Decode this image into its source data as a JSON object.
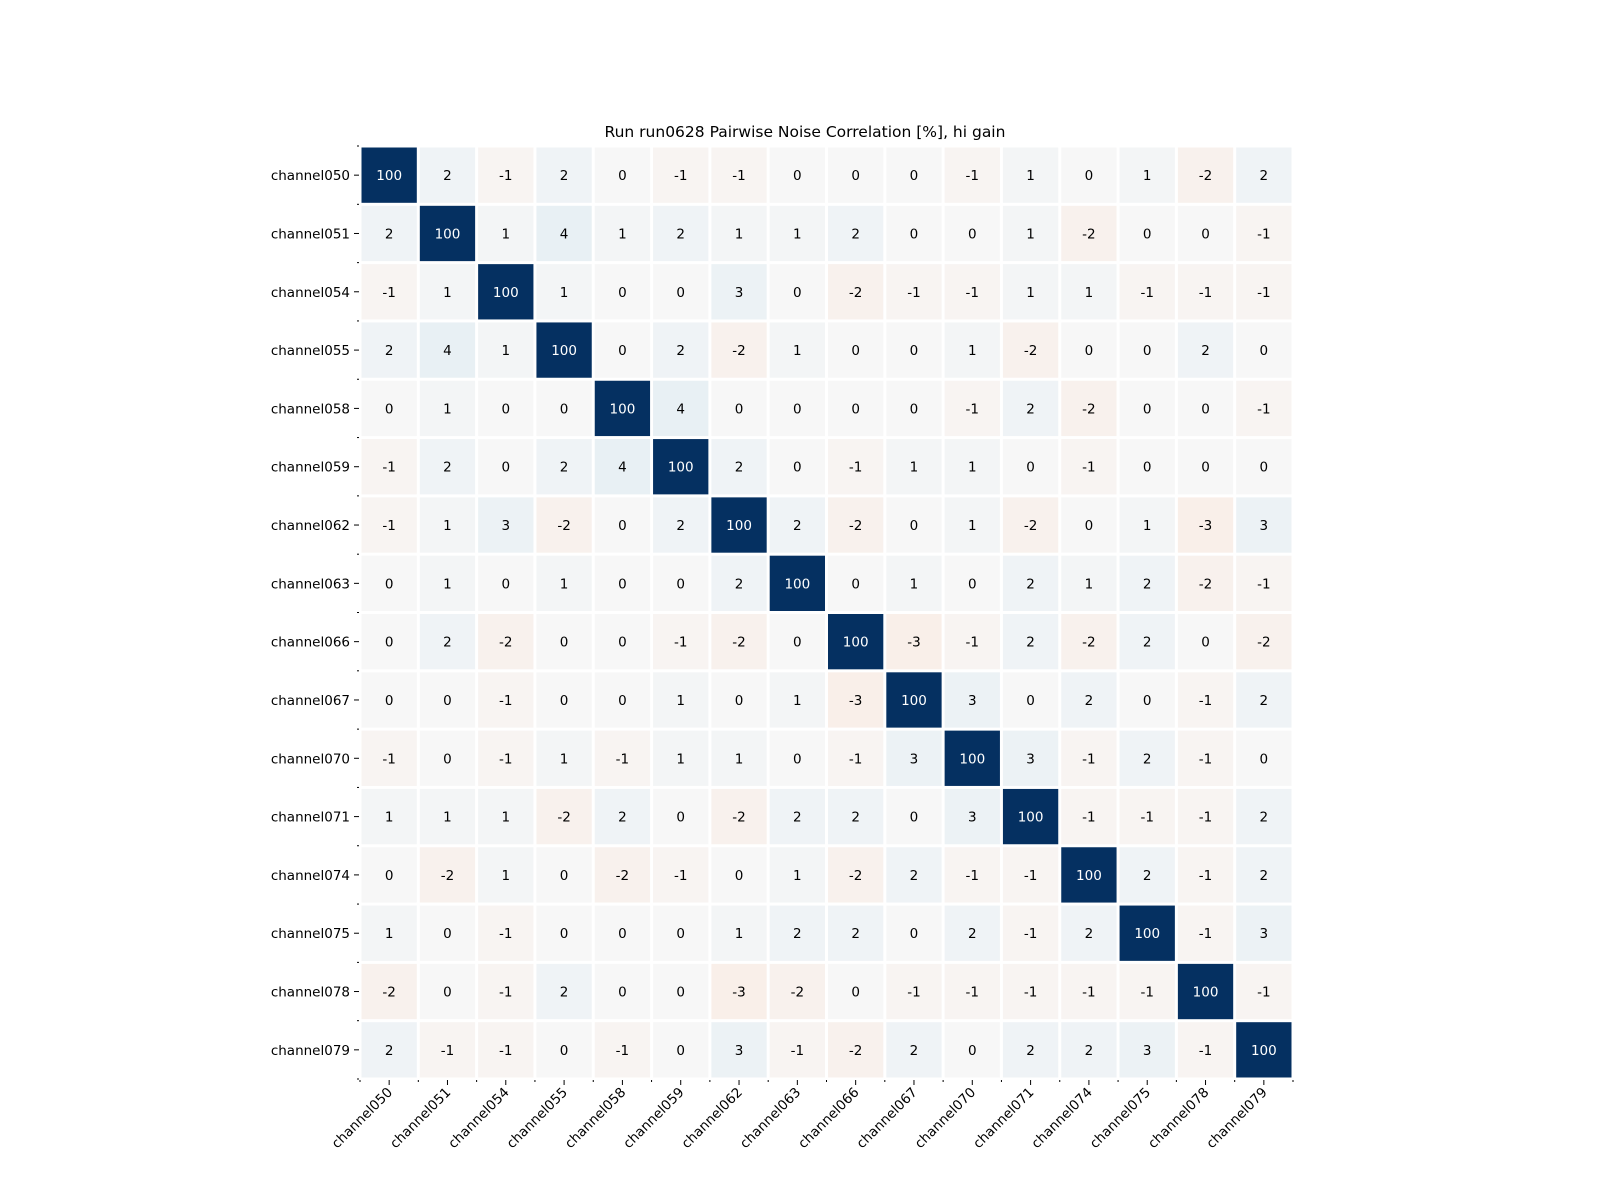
{
  "chart_data": {
    "type": "heatmap",
    "title": "Run run0628 Pairwise Noise Correlation [%], hi gain",
    "xlabel": "",
    "ylabel": "",
    "colormap": "diverging red-white-blue (RdBu), centered at 0",
    "vmin": -100,
    "vmax": 100,
    "colors": {
      "negative_extreme": "#67001f",
      "neutral": "#f7f7f7",
      "positive_extreme": "#053061",
      "diagonal": "#053061",
      "gridline": "#ffffff"
    },
    "grid": false,
    "legend": "none",
    "x_categories": [
      "channel050",
      "channel051",
      "channel054",
      "channel055",
      "channel058",
      "channel059",
      "channel062",
      "channel063",
      "channel066",
      "channel067",
      "channel070",
      "channel071",
      "channel074",
      "channel075",
      "channel078",
      "channel079"
    ],
    "y_categories": [
      "channel050",
      "channel051",
      "channel054",
      "channel055",
      "channel058",
      "channel059",
      "channel062",
      "channel063",
      "channel066",
      "channel067",
      "channel070",
      "channel071",
      "channel074",
      "channel075",
      "channel078",
      "channel079"
    ],
    "values": [
      [
        100,
        2,
        -1,
        2,
        0,
        -1,
        -1,
        0,
        0,
        0,
        -1,
        1,
        0,
        1,
        -2,
        2
      ],
      [
        2,
        100,
        1,
        4,
        1,
        2,
        1,
        1,
        2,
        0,
        0,
        1,
        -2,
        0,
        0,
        -1
      ],
      [
        -1,
        1,
        100,
        1,
        0,
        0,
        3,
        0,
        -2,
        -1,
        -1,
        1,
        1,
        -1,
        -1,
        -1
      ],
      [
        2,
        4,
        1,
        100,
        0,
        2,
        -2,
        1,
        0,
        0,
        1,
        -2,
        0,
        0,
        2,
        0
      ],
      [
        0,
        1,
        0,
        0,
        100,
        4,
        0,
        0,
        0,
        0,
        -1,
        2,
        -2,
        0,
        0,
        -1
      ],
      [
        -1,
        2,
        0,
        2,
        4,
        100,
        2,
        0,
        -1,
        1,
        1,
        0,
        -1,
        0,
        0,
        0
      ],
      [
        -1,
        1,
        3,
        -2,
        0,
        2,
        100,
        2,
        -2,
        0,
        1,
        -2,
        0,
        1,
        -3,
        3
      ],
      [
        0,
        1,
        0,
        1,
        0,
        0,
        2,
        100,
        0,
        1,
        0,
        2,
        1,
        2,
        -2,
        -1
      ],
      [
        0,
        2,
        -2,
        0,
        0,
        -1,
        -2,
        0,
        100,
        -3,
        -1,
        2,
        -2,
        2,
        0,
        -2
      ],
      [
        0,
        0,
        -1,
        0,
        0,
        1,
        0,
        1,
        -3,
        100,
        3,
        0,
        2,
        0,
        -1,
        2
      ],
      [
        -1,
        0,
        -1,
        1,
        -1,
        1,
        1,
        0,
        -1,
        3,
        100,
        3,
        -1,
        2,
        -1,
        0
      ],
      [
        1,
        1,
        1,
        -2,
        2,
        0,
        -2,
        2,
        2,
        0,
        3,
        100,
        -1,
        -1,
        -1,
        2
      ],
      [
        0,
        -2,
        1,
        0,
        -2,
        -1,
        0,
        1,
        -2,
        2,
        -1,
        -1,
        100,
        2,
        -1,
        2
      ],
      [
        1,
        0,
        -1,
        0,
        0,
        0,
        1,
        2,
        2,
        0,
        2,
        -1,
        2,
        100,
        -1,
        3
      ],
      [
        -2,
        0,
        -1,
        2,
        0,
        0,
        -3,
        -2,
        0,
        -1,
        -1,
        -1,
        -1,
        -1,
        100,
        -1
      ],
      [
        2,
        -1,
        -1,
        0,
        -1,
        0,
        3,
        -1,
        -2,
        2,
        0,
        2,
        2,
        3,
        -1,
        100
      ]
    ]
  }
}
